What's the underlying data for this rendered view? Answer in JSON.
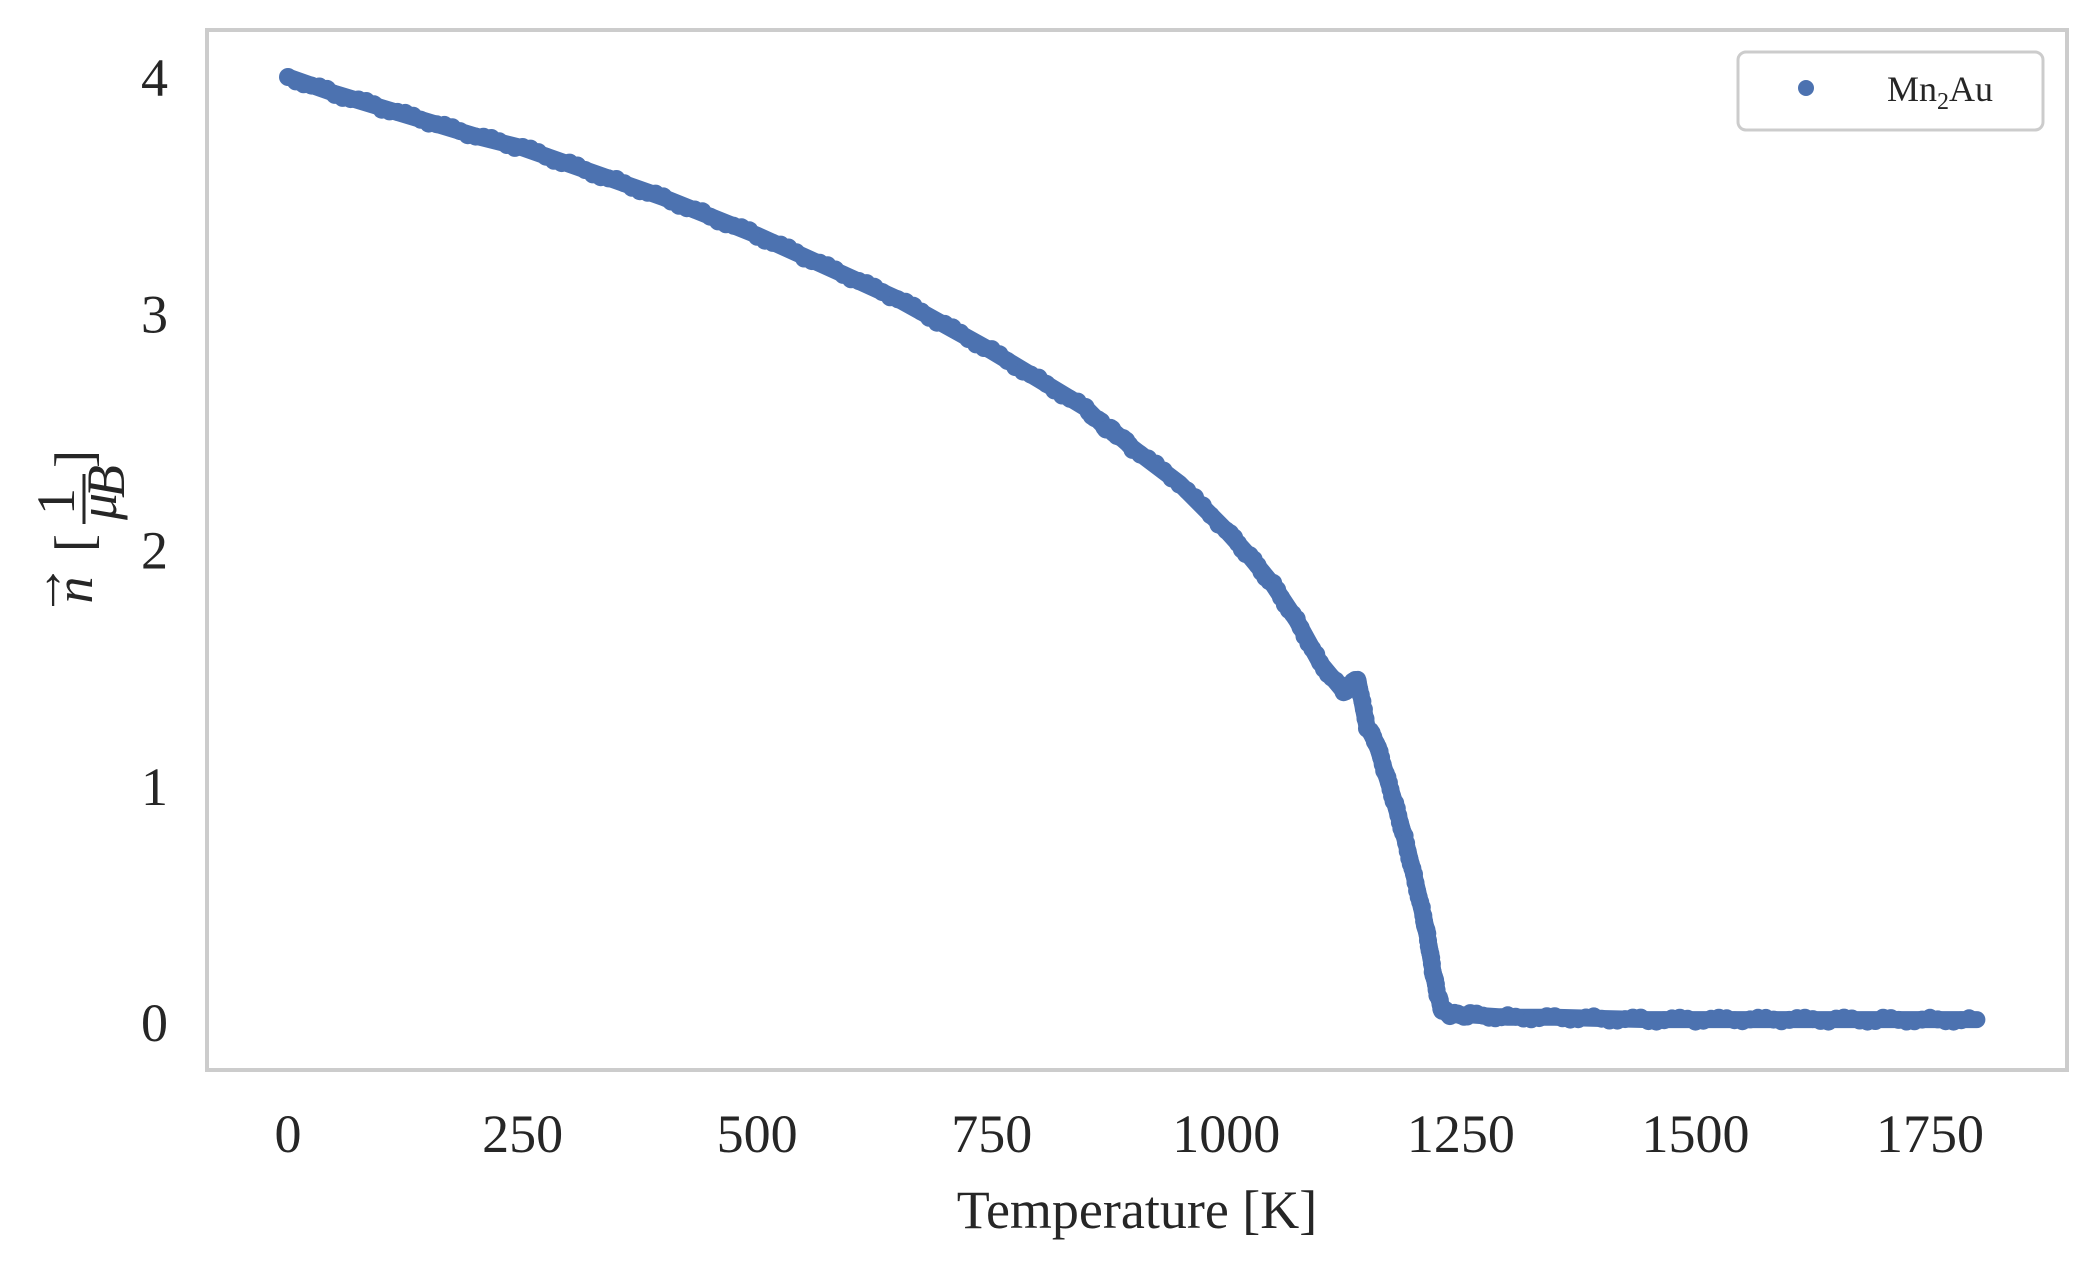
{
  "chart_data": {
    "type": "scatter",
    "title": "",
    "xlabel": "Temperature [K]",
    "ylabel": "n⃗ [1/μB]",
    "ylabel_parts": {
      "vector": "n",
      "numerator": "1",
      "denominator": "μ",
      "denominator_sub": "B"
    },
    "xlim": [
      -90,
      1900
    ],
    "ylim": [
      -0.2,
      4.2
    ],
    "xticks": [
      0,
      250,
      500,
      750,
      1000,
      1250,
      1500,
      1750
    ],
    "xtick_labels": [
      "0",
      "250",
      "500",
      "750",
      "1000",
      "1250",
      "1500",
      "1750"
    ],
    "yticks": [
      0,
      1,
      2,
      3,
      4
    ],
    "ytick_labels": [
      "0",
      "1",
      "2",
      "3",
      "4"
    ],
    "grid": false,
    "legend_position": "upper right",
    "series": [
      {
        "name": "Mn2Au",
        "label_main": "Mn",
        "label_sub": "2",
        "label_tail": "Au",
        "color": "#4c72b0",
        "marker": "circle",
        "x": [
          0,
          50,
          100,
          150,
          200,
          250,
          300,
          350,
          400,
          450,
          500,
          550,
          600,
          650,
          700,
          750,
          800,
          850,
          870,
          880,
          900,
          950,
          1000,
          1025,
          1050,
          1075,
          1100,
          1125,
          1140,
          1150,
          1160,
          1170,
          1180,
          1190,
          1200,
          1210,
          1215,
          1220,
          1225,
          1230,
          1240,
          1260,
          1300,
          1350,
          1400,
          1450,
          1500,
          1550,
          1600,
          1650,
          1700,
          1750,
          1800
        ],
        "y": [
          4.0,
          3.93,
          3.87,
          3.81,
          3.75,
          3.7,
          3.63,
          3.56,
          3.49,
          3.41,
          3.33,
          3.24,
          3.15,
          3.06,
          2.95,
          2.84,
          2.72,
          2.6,
          2.52,
          2.5,
          2.43,
          2.28,
          2.08,
          1.97,
          1.85,
          1.7,
          1.52,
          1.4,
          1.45,
          1.25,
          1.18,
          1.05,
          0.92,
          0.78,
          0.62,
          0.45,
          0.35,
          0.22,
          0.12,
          0.05,
          0.03,
          0.03,
          0.02,
          0.02,
          0.015,
          0.01,
          0.01,
          0.01,
          0.01,
          0.01,
          0.01,
          0.01,
          0.01
        ]
      }
    ]
  },
  "colors": {
    "axes_frame": "#cccccc",
    "legend_frame": "#cccccc",
    "text": "#262626",
    "series": "#4c72b0"
  }
}
